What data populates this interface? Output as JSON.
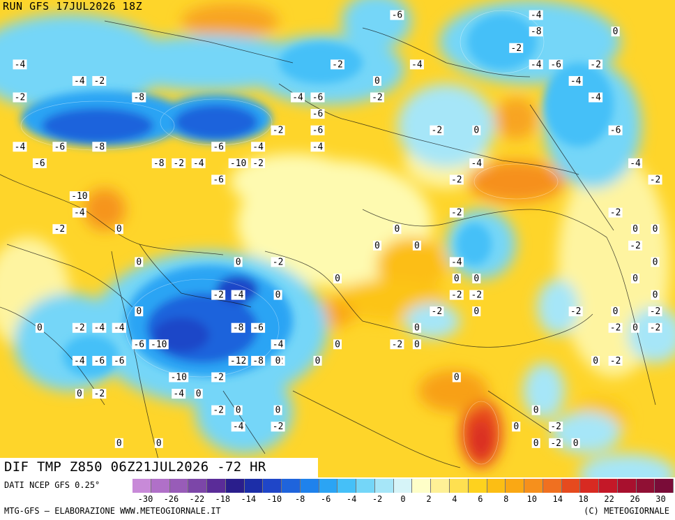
{
  "header": {
    "run_label": "RUN GFS 17JUL2026 18Z",
    "title": "DIF TMP Z850 06Z21JUL2026 -72 HR"
  },
  "footer": {
    "source": "DATI NCEP GFS 0.25°",
    "credit": "MTG-GFS — ELABORAZIONE WWW.METEOGIORNALE.IT",
    "copyright": "(C) METEOGIORNALE"
  },
  "scale": {
    "colors": [
      "#c88ad8",
      "#b070c8",
      "#985cb8",
      "#7c46a8",
      "#5a2c98",
      "#2a1e8c",
      "#1c2ea8",
      "#1f46c8",
      "#1f64dc",
      "#1f82ec",
      "#2ba4f4",
      "#45c0f8",
      "#74d6f8",
      "#a6e6f8",
      "#d6f4f8",
      "#fefec8",
      "#fef096",
      "#fee050",
      "#fed21e",
      "#fcbe14",
      "#faa814",
      "#f6901c",
      "#f07020",
      "#e64a1e",
      "#d82a22",
      "#c41828",
      "#a8102e",
      "#901034",
      "#7a0c38"
    ],
    "labels": [
      "-30",
      "-26",
      "-22",
      "-18",
      "-14",
      "-10",
      "-8",
      "-6",
      "-4",
      "-2",
      "0",
      "2",
      "4",
      "6",
      "8",
      "10",
      "14",
      "18",
      "22",
      "26",
      "30"
    ]
  },
  "map": {
    "variable": "850 hPa temperature difference (°C)",
    "map_values": [
      {
        "lon": 60,
        "lat": 66,
        "v": "-4"
      },
      {
        "lon": 60,
        "lat": 62,
        "v": "-2"
      },
      {
        "lon": 66,
        "lat": 64,
        "v": "-4"
      },
      {
        "lon": 68,
        "lat": 64,
        "v": "-2"
      },
      {
        "lon": 72,
        "lat": 62,
        "v": "-8"
      },
      {
        "lon": 60,
        "lat": 56,
        "v": "-4"
      },
      {
        "lon": 62,
        "lat": 54,
        "v": "-6"
      },
      {
        "lon": 64,
        "lat": 56,
        "v": "-6"
      },
      {
        "lon": 68,
        "lat": 56,
        "v": "-8"
      },
      {
        "lon": 74,
        "lat": 54,
        "v": "-8"
      },
      {
        "lon": 66,
        "lat": 50,
        "v": "-10"
      },
      {
        "lon": 66,
        "lat": 48,
        "v": "-4"
      },
      {
        "lon": 64,
        "lat": 46,
        "v": "-2"
      },
      {
        "lon": 70,
        "lat": 46,
        "v": "0"
      },
      {
        "lon": 76,
        "lat": 54,
        "v": "-2"
      },
      {
        "lon": 80,
        "lat": 56,
        "v": "-6"
      },
      {
        "lon": 84,
        "lat": 56,
        "v": "-4"
      },
      {
        "lon": 82,
        "lat": 54,
        "v": "-10"
      },
      {
        "lon": 80,
        "lat": 52,
        "v": "-6"
      },
      {
        "lon": 84,
        "lat": 54,
        "v": "-2"
      },
      {
        "lon": 78,
        "lat": 54,
        "v": "-4"
      },
      {
        "lon": 86,
        "lat": 58,
        "v": "-2"
      },
      {
        "lon": 90,
        "lat": 62,
        "v": "-6"
      },
      {
        "lon": 88,
        "lat": 62,
        "v": "-4"
      },
      {
        "lon": 90,
        "lat": 60,
        "v": "-6"
      },
      {
        "lon": 92,
        "lat": 66,
        "v": "-2"
      },
      {
        "lon": 90,
        "lat": 58,
        "v": "-6"
      },
      {
        "lon": 90,
        "lat": 56,
        "v": "-4"
      },
      {
        "lon": 96,
        "lat": 62,
        "v": "-2"
      },
      {
        "lon": 96,
        "lat": 64,
        "v": "0"
      },
      {
        "lon": 98,
        "lat": 72,
        "v": "-6"
      },
      {
        "lon": 100,
        "lat": 66,
        "v": "-4"
      },
      {
        "lon": 102,
        "lat": 58,
        "v": "-2"
      },
      {
        "lon": 106,
        "lat": 58,
        "v": "0"
      },
      {
        "lon": 106,
        "lat": 54,
        "v": "-4"
      },
      {
        "lon": 104,
        "lat": 52,
        "v": "-2"
      },
      {
        "lon": 104,
        "lat": 48,
        "v": "-2"
      },
      {
        "lon": 112,
        "lat": 72,
        "v": "-4"
      },
      {
        "lon": 112,
        "lat": 70,
        "v": "-8"
      },
      {
        "lon": 110,
        "lat": 68,
        "v": "-2"
      },
      {
        "lon": 112,
        "lat": 66,
        "v": "-4"
      },
      {
        "lon": 114,
        "lat": 66,
        "v": "-6"
      },
      {
        "lon": 116,
        "lat": 64,
        "v": "-4"
      },
      {
        "lon": 118,
        "lat": 66,
        "v": "-2"
      },
      {
        "lon": 120,
        "lat": 70,
        "v": "0"
      },
      {
        "lon": 118,
        "lat": 62,
        "v": "-4"
      },
      {
        "lon": 120,
        "lat": 58,
        "v": "-6"
      },
      {
        "lon": 122,
        "lat": 54,
        "v": "-4"
      },
      {
        "lon": 124,
        "lat": 52,
        "v": "-2"
      },
      {
        "lon": 120,
        "lat": 48,
        "v": "-2"
      },
      {
        "lon": 122,
        "lat": 46,
        "v": "0"
      },
      {
        "lon": 72,
        "lat": 42,
        "v": "0"
      },
      {
        "lon": 82,
        "lat": 42,
        "v": "0"
      },
      {
        "lon": 86,
        "lat": 42,
        "v": "-2"
      },
      {
        "lon": 92,
        "lat": 40,
        "v": "0"
      },
      {
        "lon": 96,
        "lat": 44,
        "v": "0"
      },
      {
        "lon": 98,
        "lat": 46,
        "v": "0"
      },
      {
        "lon": 100,
        "lat": 44,
        "v": "0"
      },
      {
        "lon": 104,
        "lat": 42,
        "v": "-4"
      },
      {
        "lon": 104,
        "lat": 40,
        "v": "0"
      },
      {
        "lon": 106,
        "lat": 40,
        "v": "0"
      },
      {
        "lon": 104,
        "lat": 38,
        "v": "-2"
      },
      {
        "lon": 106,
        "lat": 38,
        "v": "-2"
      },
      {
        "lon": 102,
        "lat": 36,
        "v": "-2"
      },
      {
        "lon": 106,
        "lat": 36,
        "v": "0"
      },
      {
        "lon": 100,
        "lat": 34,
        "v": "0"
      },
      {
        "lon": 98,
        "lat": 32,
        "v": "-2"
      },
      {
        "lon": 92,
        "lat": 32,
        "v": "0"
      },
      {
        "lon": 80,
        "lat": 38,
        "v": "-2"
      },
      {
        "lon": 82,
        "lat": 38,
        "v": "-4"
      },
      {
        "lon": 86,
        "lat": 38,
        "v": "0"
      },
      {
        "lon": 72,
        "lat": 36,
        "v": "0"
      },
      {
        "lon": 70,
        "lat": 34,
        "v": "-2"
      },
      {
        "lon": 70,
        "lat": 34,
        "v": "-4"
      },
      {
        "lon": 72,
        "lat": 32,
        "v": "-6"
      },
      {
        "lon": 74,
        "lat": 32,
        "v": "-10"
      },
      {
        "lon": 84,
        "lat": 34,
        "v": "-6"
      },
      {
        "lon": 82,
        "lat": 34,
        "v": "-8"
      },
      {
        "lon": 86,
        "lat": 32,
        "v": "-4"
      },
      {
        "lon": 84,
        "lat": 30,
        "v": "-8"
      },
      {
        "lon": 82,
        "lat": 30,
        "v": "-12"
      },
      {
        "lon": 86,
        "lat": 30,
        "v": "-2"
      },
      {
        "lon": 86,
        "lat": 30,
        "v": "0"
      },
      {
        "lon": 76,
        "lat": 28,
        "v": "-10"
      },
      {
        "lon": 76,
        "lat": 26,
        "v": "-4"
      },
      {
        "lon": 80,
        "lat": 28,
        "v": "-2"
      },
      {
        "lon": 62,
        "lat": 34,
        "v": "0"
      },
      {
        "lon": 66,
        "lat": 34,
        "v": "-2"
      },
      {
        "lon": 68,
        "lat": 34,
        "v": "-4"
      },
      {
        "lon": 66,
        "lat": 30,
        "v": "-4"
      },
      {
        "lon": 68,
        "lat": 30,
        "v": "-6"
      },
      {
        "lon": 70,
        "lat": 30,
        "v": "-6"
      },
      {
        "lon": 66,
        "lat": 26,
        "v": "0"
      },
      {
        "lon": 68,
        "lat": 26,
        "v": "-2"
      },
      {
        "lon": 78,
        "lat": 26,
        "v": "0"
      },
      {
        "lon": 82,
        "lat": 24,
        "v": "0"
      },
      {
        "lon": 80,
        "lat": 24,
        "v": "-2"
      },
      {
        "lon": 82,
        "lat": 22,
        "v": "-4"
      },
      {
        "lon": 86,
        "lat": 22,
        "v": "-2"
      },
      {
        "lon": 86,
        "lat": 24,
        "v": "0"
      },
      {
        "lon": 70,
        "lat": 20,
        "v": "0"
      },
      {
        "lon": 74,
        "lat": 20,
        "v": "0"
      },
      {
        "lon": 90,
        "lat": 30,
        "v": "0"
      },
      {
        "lon": 100,
        "lat": 32,
        "v": "0"
      },
      {
        "lon": 104,
        "lat": 28,
        "v": "0"
      },
      {
        "lon": 110,
        "lat": 22,
        "v": "0"
      },
      {
        "lon": 114,
        "lat": 22,
        "v": "-2"
      },
      {
        "lon": 114,
        "lat": 20,
        "v": "-2"
      },
      {
        "lon": 112,
        "lat": 20,
        "v": "0"
      },
      {
        "lon": 116,
        "lat": 20,
        "v": "0"
      },
      {
        "lon": 112,
        "lat": 24,
        "v": "0"
      },
      {
        "lon": 118,
        "lat": 30,
        "v": "0"
      },
      {
        "lon": 120,
        "lat": 30,
        "v": "-2"
      },
      {
        "lon": 120,
        "lat": 34,
        "v": "-2"
      },
      {
        "lon": 122,
        "lat": 34,
        "v": "0"
      },
      {
        "lon": 122,
        "lat": 40,
        "v": "0"
      },
      {
        "lon": 124,
        "lat": 38,
        "v": "0"
      },
      {
        "lon": 124,
        "lat": 42,
        "v": "0"
      },
      {
        "lon": 122,
        "lat": 44,
        "v": "-2"
      },
      {
        "lon": 124,
        "lat": 46,
        "v": "0"
      },
      {
        "lon": 120,
        "lat": 36,
        "v": "0"
      },
      {
        "lon": 116,
        "lat": 36,
        "v": "-2"
      },
      {
        "lon": 124,
        "lat": 36,
        "v": "-2"
      },
      {
        "lon": 124,
        "lat": 34,
        "v": "-2"
      }
    ]
  }
}
